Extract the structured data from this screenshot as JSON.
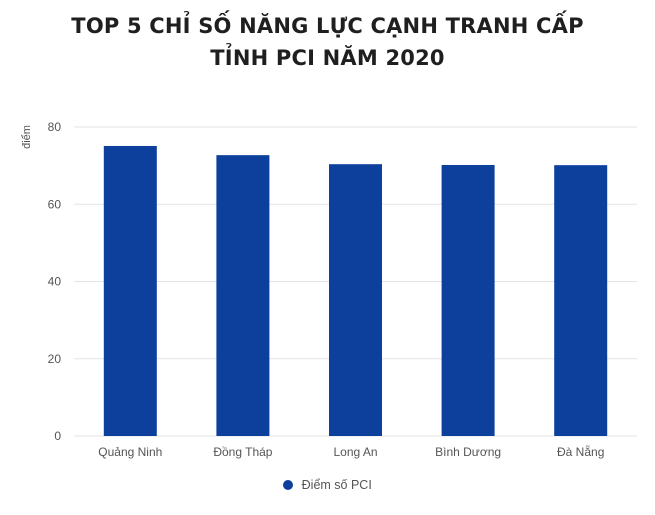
{
  "title_lines": [
    "TOP 5 CHỈ SỐ NĂNG LỰC CẠNH TRANH CẤP",
    "TỈNH PCI NĂM 2020"
  ],
  "colors": {
    "bar": "#0d3f9c",
    "grid": "#e3e3e3",
    "text": "#555555",
    "title": "#1f1f1f"
  },
  "chart_data": {
    "type": "bar",
    "title": "TOP 5 CHỈ SỐ NĂNG LỰC CẠNH TRANH CẤP TỈNH PCI NĂM 2020",
    "xlabel": "",
    "ylabel": "điểm",
    "categories": [
      "Quảng Ninh",
      "Đồng Tháp",
      "Long An",
      "Bình Dương",
      "Đà Nẵng"
    ],
    "series": [
      {
        "name": "Điểm số PCI",
        "values": [
          75.09,
          72.71,
          70.37,
          70.16,
          70.12
        ]
      }
    ],
    "ylim": [
      0,
      80
    ],
    "yticks": [
      0,
      20,
      40,
      60,
      80
    ],
    "grid": true,
    "legend_position": "bottom"
  }
}
